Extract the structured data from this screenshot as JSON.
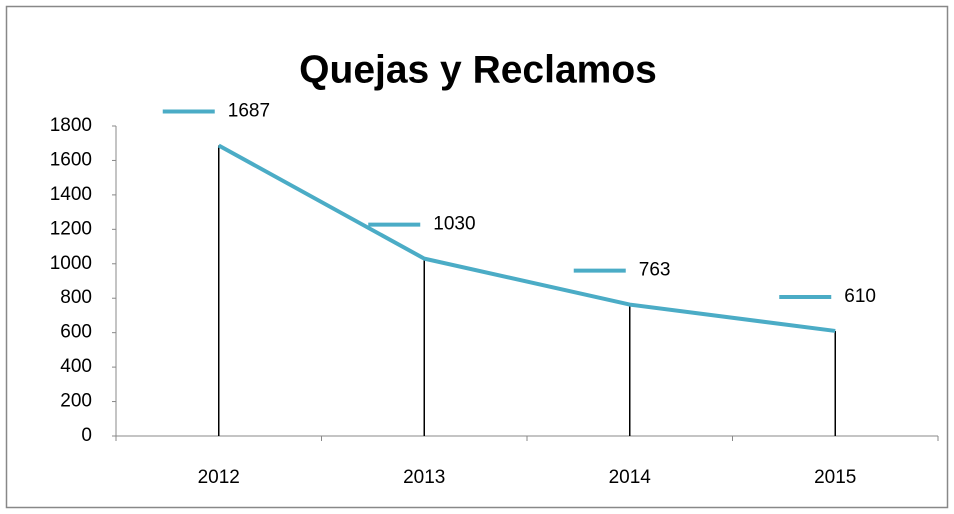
{
  "chart_data": {
    "type": "line",
    "title": "Quejas y Reclamos",
    "categories": [
      "2012",
      "2013",
      "2014",
      "2015"
    ],
    "values": [
      1687,
      1030,
      763,
      610
    ],
    "color": "#4bacc6",
    "ylim": [
      0,
      1800
    ],
    "yticks": [
      0,
      200,
      400,
      600,
      800,
      1000,
      1200,
      1400,
      1600,
      1800
    ],
    "drop_lines": true
  }
}
